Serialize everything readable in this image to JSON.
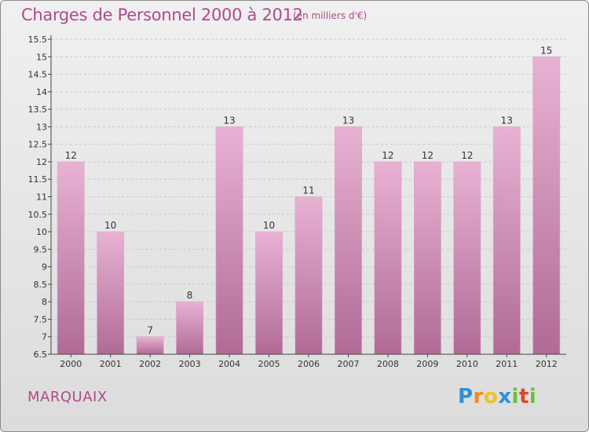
{
  "title": "Charges de Personnel 2000 à 2012",
  "subtitle": "(en milliers d'€)",
  "commune": "MARQUAIX",
  "logo": {
    "letters": [
      "P",
      "r",
      "o",
      "x",
      "i",
      "t",
      "i"
    ],
    "colors": [
      "#2f8fd8",
      "#f08a1c",
      "#f0c21c",
      "#2f8fd8",
      "#6bbf3a",
      "#e0452a",
      "#6bbf3a"
    ]
  },
  "colors": {
    "bar_top": "#e8b2d4",
    "bar_bottom": "#b06b95",
    "text": "#b04a8b",
    "axis": "#444444"
  },
  "chart_data": {
    "type": "bar",
    "categories": [
      "2000",
      "2001",
      "2002",
      "2003",
      "2004",
      "2005",
      "2006",
      "2007",
      "2008",
      "2009",
      "2010",
      "2011",
      "2012"
    ],
    "values": [
      12,
      10,
      7,
      8,
      13,
      10,
      11,
      13,
      12,
      12,
      12,
      13,
      15
    ],
    "data_labels": [
      "12",
      "10",
      "7",
      "8",
      "13",
      "10",
      "11",
      "13",
      "12",
      "12",
      "12",
      "13",
      "15"
    ],
    "ylim": [
      6.5,
      15.5
    ],
    "yticks": [
      "6.5",
      "7",
      "7.5",
      "8",
      "8.5",
      "9",
      "9.5",
      "10",
      "10.5",
      "11",
      "11.5",
      "12",
      "12.5",
      "13",
      "13.5",
      "14",
      "14.5",
      "15",
      "15.5"
    ],
    "grid": true,
    "legend": "none"
  }
}
